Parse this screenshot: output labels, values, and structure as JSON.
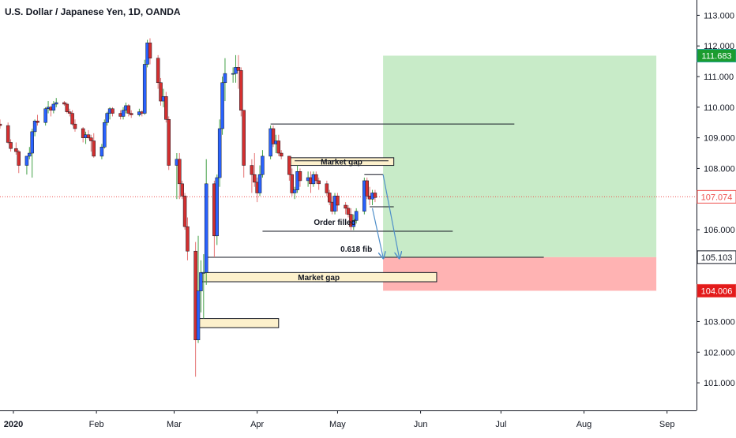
{
  "chart_data": {
    "type": "candlestick",
    "title": "U.S. Dollar / Japanese Yen, 1D, OANDA",
    "ylim": [
      100.1,
      113.5
    ],
    "y_ticks": [
      {
        "value": 113,
        "label": "113.000"
      },
      {
        "value": 112,
        "label": "112.000"
      },
      {
        "value": 111,
        "label": "111.000"
      },
      {
        "value": 110,
        "label": "110.000"
      },
      {
        "value": 109,
        "label": "109.000"
      },
      {
        "value": 108,
        "label": "108.000"
      },
      {
        "value": 107,
        "label": "107.000"
      },
      {
        "value": 106,
        "label": "106.000"
      },
      {
        "value": 105,
        "label": "105.000"
      },
      {
        "value": 104,
        "label": "104.000"
      },
      {
        "value": 103,
        "label": "103.000"
      },
      {
        "value": 102,
        "label": "102.000"
      },
      {
        "value": 101,
        "label": "101.000"
      }
    ],
    "x_range": [
      "2019-12-27",
      "2020-09-12"
    ],
    "x_ticks": [
      {
        "date": "2020-01-01",
        "label": "2020",
        "bold": true
      },
      {
        "date": "2020-02-01",
        "label": "Feb"
      },
      {
        "date": "2020-03-01",
        "label": "Mar"
      },
      {
        "date": "2020-04-01",
        "label": "Apr"
      },
      {
        "date": "2020-05-01",
        "label": "May"
      },
      {
        "date": "2020-06-01",
        "label": "Jun"
      },
      {
        "date": "2020-07-01",
        "label": "Jul"
      },
      {
        "date": "2020-08-01",
        "label": "Aug"
      },
      {
        "date": "2020-09-01",
        "label": "Sep"
      }
    ],
    "price_labels": [
      {
        "value": 111.683,
        "label": "111.683",
        "color": "#26a69a",
        "fill": "#1b9c2f"
      },
      {
        "value": 107.074,
        "label": "107.074",
        "color": "#ef5350",
        "fill": "#ffffff",
        "text_color": "#ef5350"
      },
      {
        "value": 105.103,
        "label": "105.103",
        "color": "#131722",
        "fill": "#ffffff",
        "text_color": "#131722"
      },
      {
        "value": 104.006,
        "label": "104.006",
        "color": "#ef5350",
        "fill": "#e31b1b"
      }
    ],
    "current_price": 107.074,
    "colors": {
      "up": "#2962ff",
      "down": "#d32f2f",
      "profit_zone": "#c8ebc8",
      "loss_zone": "#ffb3b3",
      "gap_box": "#fdf1cc",
      "current_line": "#ef5350"
    },
    "candles": [
      [
        "2019-12-27",
        109.45,
        109.6,
        109.3,
        109.4
      ],
      [
        "2019-12-30",
        109.4,
        109.5,
        108.8,
        108.85
      ],
      [
        "2019-12-31",
        108.85,
        108.95,
        108.55,
        108.65
      ],
      [
        "2020-01-02",
        108.65,
        108.85,
        108.45,
        108.55
      ],
      [
        "2020-01-03",
        108.55,
        108.6,
        107.85,
        108.1
      ],
      [
        "2020-01-06",
        108.1,
        108.35,
        107.8,
        108.4
      ],
      [
        "2020-01-07",
        108.4,
        108.7,
        108.3,
        108.5
      ],
      [
        "2020-01-08",
        108.5,
        109.3,
        107.7,
        109.2
      ],
      [
        "2020-01-09",
        109.2,
        109.6,
        109.05,
        109.55
      ],
      [
        "2020-01-10",
        109.55,
        109.75,
        109.4,
        109.5
      ],
      [
        "2020-01-13",
        109.5,
        110.0,
        109.4,
        109.95
      ],
      [
        "2020-01-14",
        109.95,
        110.2,
        109.8,
        110.0
      ],
      [
        "2020-01-15",
        110.0,
        110.05,
        109.7,
        109.9
      ],
      [
        "2020-01-16",
        109.9,
        110.2,
        109.8,
        110.1
      ],
      [
        "2020-01-17",
        110.1,
        110.3,
        110.0,
        110.15
      ],
      [
        "2020-01-20",
        110.15,
        110.2,
        110.05,
        110.1
      ],
      [
        "2020-01-21",
        110.1,
        110.15,
        109.8,
        109.85
      ],
      [
        "2020-01-22",
        109.85,
        109.95,
        109.7,
        109.8
      ],
      [
        "2020-01-23",
        109.8,
        109.9,
        109.4,
        109.45
      ],
      [
        "2020-01-24",
        109.45,
        109.6,
        109.2,
        109.3
      ],
      [
        "2020-01-27",
        109.3,
        109.35,
        108.85,
        109.0
      ],
      [
        "2020-01-28",
        109.0,
        109.2,
        108.8,
        109.1
      ],
      [
        "2020-01-29",
        109.1,
        109.25,
        108.95,
        109.0
      ],
      [
        "2020-01-30",
        109.0,
        109.1,
        108.55,
        108.9
      ],
      [
        "2020-01-31",
        108.9,
        109.15,
        108.35,
        108.4
      ],
      [
        "2020-02-03",
        108.4,
        108.8,
        108.3,
        108.7
      ],
      [
        "2020-02-04",
        108.7,
        109.6,
        108.65,
        109.5
      ],
      [
        "2020-02-05",
        109.5,
        109.85,
        109.4,
        109.8
      ],
      [
        "2020-02-06",
        109.8,
        110.0,
        109.6,
        109.95
      ],
      [
        "2020-02-07",
        109.95,
        110.0,
        109.7,
        109.8
      ],
      [
        "2020-02-10",
        109.8,
        109.9,
        109.6,
        109.7
      ],
      [
        "2020-02-11",
        109.7,
        110.0,
        109.6,
        109.9
      ],
      [
        "2020-02-12",
        109.9,
        110.15,
        109.8,
        110.05
      ],
      [
        "2020-02-13",
        110.05,
        110.1,
        109.7,
        109.8
      ],
      [
        "2020-02-14",
        109.8,
        109.9,
        109.65,
        109.75
      ],
      [
        "2020-02-17",
        109.75,
        109.95,
        109.7,
        109.85
      ],
      [
        "2020-02-18",
        109.85,
        109.9,
        109.7,
        109.8
      ],
      [
        "2020-02-19",
        109.8,
        111.55,
        109.75,
        111.4
      ],
      [
        "2020-02-20",
        111.4,
        112.2,
        111.3,
        112.1
      ],
      [
        "2020-02-21",
        112.1,
        112.25,
        111.4,
        111.6
      ],
      [
        "2020-02-24",
        111.6,
        111.7,
        110.6,
        110.8
      ],
      [
        "2020-02-25",
        110.8,
        110.95,
        110.05,
        110.2
      ],
      [
        "2020-02-26",
        110.2,
        110.6,
        110.0,
        110.35
      ],
      [
        "2020-02-27",
        110.35,
        110.5,
        109.5,
        109.6
      ],
      [
        "2020-02-28",
        109.6,
        109.7,
        107.95,
        108.1
      ],
      [
        "2020-03-02",
        108.1,
        108.5,
        107.0,
        108.3
      ],
      [
        "2020-03-03",
        108.3,
        108.5,
        107.0,
        107.5
      ],
      [
        "2020-03-04",
        107.5,
        107.6,
        107.0,
        107.1
      ],
      [
        "2020-03-05",
        107.1,
        107.2,
        106.0,
        106.1
      ],
      [
        "2020-03-06",
        106.1,
        106.4,
        105.0,
        105.3
      ],
      [
        "2020-03-09",
        105.3,
        105.6,
        101.2,
        102.4
      ],
      [
        "2020-03-10",
        102.4,
        105.8,
        102.3,
        104.0
      ],
      [
        "2020-03-11",
        104.0,
        105.0,
        103.3,
        104.6
      ],
      [
        "2020-03-12",
        104.6,
        105.2,
        103.1,
        104.6
      ],
      [
        "2020-03-13",
        104.6,
        108.3,
        104.2,
        107.5
      ],
      [
        "2020-03-16",
        107.5,
        107.6,
        105.1,
        105.8
      ],
      [
        "2020-03-17",
        105.8,
        107.8,
        105.5,
        107.7
      ],
      [
        "2020-03-18",
        107.7,
        109.6,
        107.4,
        109.3
      ],
      [
        "2020-03-19",
        109.3,
        111.0,
        109.1,
        110.8
      ],
      [
        "2020-03-20",
        110.8,
        111.6,
        110.2,
        111.1
      ],
      [
        "2020-03-23",
        111.1,
        111.3,
        110.8,
        111.1
      ],
      [
        "2020-03-24",
        111.1,
        111.7,
        110.8,
        111.3
      ],
      [
        "2020-03-25",
        111.3,
        111.7,
        110.6,
        111.2
      ],
      [
        "2020-03-26",
        111.2,
        111.3,
        109.7,
        109.9
      ],
      [
        "2020-03-27",
        109.9,
        109.9,
        107.7,
        108.1
      ],
      [
        "2020-03-30",
        108.1,
        108.3,
        107.2,
        107.8
      ],
      [
        "2020-03-31",
        107.8,
        108.5,
        107.4,
        107.55
      ],
      [
        "2020-04-01",
        107.55,
        107.7,
        106.9,
        107.2
      ],
      [
        "2020-04-02",
        107.2,
        108.1,
        107.1,
        107.8
      ],
      [
        "2020-04-03",
        107.8,
        108.6,
        107.7,
        108.4
      ],
      [
        "2020-04-06",
        108.4,
        109.4,
        108.3,
        109.3
      ],
      [
        "2020-04-07",
        109.3,
        109.4,
        108.7,
        108.8
      ],
      [
        "2020-04-08",
        108.8,
        109.1,
        108.5,
        108.9
      ],
      [
        "2020-04-09",
        108.9,
        109.1,
        108.4,
        108.5
      ],
      [
        "2020-04-10",
        108.5,
        108.6,
        108.3,
        108.4
      ],
      [
        "2020-04-13",
        108.4,
        108.4,
        107.6,
        107.8
      ],
      [
        "2020-04-14",
        107.8,
        108.0,
        107.1,
        107.2
      ],
      [
        "2020-04-15",
        107.2,
        107.4,
        107.0,
        107.3
      ],
      [
        "2020-04-16",
        107.3,
        108.1,
        107.2,
        107.9
      ],
      [
        "2020-04-17",
        107.9,
        108.0,
        107.4,
        107.6
      ],
      [
        "2020-04-20",
        107.6,
        107.9,
        107.4,
        107.7
      ],
      [
        "2020-04-21",
        107.7,
        107.9,
        107.2,
        107.5
      ],
      [
        "2020-04-22",
        107.5,
        107.9,
        107.4,
        107.8
      ],
      [
        "2020-04-23",
        107.8,
        107.9,
        107.5,
        107.6
      ],
      [
        "2020-04-24",
        107.6,
        107.7,
        107.3,
        107.5
      ],
      [
        "2020-04-27",
        107.5,
        107.6,
        107.1,
        107.2
      ],
      [
        "2020-04-28",
        107.2,
        107.3,
        106.8,
        106.9
      ],
      [
        "2020-04-29",
        106.9,
        107.1,
        106.5,
        106.6
      ],
      [
        "2020-04-30",
        106.6,
        107.2,
        106.5,
        107.1
      ],
      [
        "2020-05-01",
        107.1,
        107.2,
        106.6,
        106.8
      ],
      [
        "2020-05-04",
        106.8,
        106.9,
        106.5,
        106.7
      ],
      [
        "2020-05-05",
        106.7,
        106.8,
        106.4,
        106.5
      ],
      [
        "2020-05-06",
        106.5,
        106.7,
        105.99,
        106.1
      ],
      [
        "2020-05-07",
        106.1,
        106.5,
        105.99,
        106.3
      ],
      [
        "2020-05-08",
        106.3,
        106.7,
        106.2,
        106.6
      ],
      [
        "2020-05-11",
        106.6,
        107.7,
        106.5,
        107.6
      ],
      [
        "2020-05-12",
        107.6,
        107.7,
        107.0,
        107.1
      ],
      [
        "2020-05-13",
        107.1,
        107.4,
        106.8,
        107.0
      ],
      [
        "2020-05-14",
        107.0,
        107.3,
        106.8,
        107.2
      ],
      [
        "2020-05-15",
        107.2,
        107.3,
        106.9,
        107.05
      ]
    ],
    "shapes": {
      "profit_zone": {
        "x0": "2020-05-18",
        "x1": "2020-08-28",
        "y0": 105.103,
        "y1": 111.683
      },
      "loss_zone": {
        "x0": "2020-05-18",
        "x1": "2020-08-28",
        "y0": 104.006,
        "y1": 105.103
      },
      "lines": [
        {
          "x0": "2020-04-06",
          "x1": "2020-07-06",
          "y": 109.45
        },
        {
          "x0": "2020-04-15",
          "x1": "2020-05-20",
          "y": 108.25
        },
        {
          "x0": "2020-05-11",
          "x1": "2020-05-18",
          "y": 107.8
        },
        {
          "x0": "2020-05-13",
          "x1": "2020-05-22",
          "y": 106.75
        },
        {
          "x0": "2020-04-03",
          "x1": "2020-06-13",
          "y": 105.95
        },
        {
          "x0": "2020-03-13",
          "x1": "2020-07-17",
          "y": 105.1
        }
      ],
      "gaps": [
        {
          "x0": "2020-04-13",
          "x1": "2020-05-22",
          "y0": 108.1,
          "y1": 108.35,
          "label": "Market gap"
        },
        {
          "x0": "2020-03-11",
          "x1": "2020-06-07",
          "y0": 104.3,
          "y1": 104.6,
          "label": "Market gap"
        },
        {
          "x0": "2020-03-09",
          "x1": "2020-04-09",
          "y0": 102.8,
          "y1": 103.1
        }
      ],
      "labels": [
        {
          "x": "2020-04-30",
          "y": 106.15,
          "text": "Order filled"
        },
        {
          "x": "2020-05-08",
          "y": 105.28,
          "text": "0.618 fib"
        }
      ],
      "arrows": [
        {
          "x0": "2020-05-14",
          "y0": 106.7,
          "x1": "2020-05-18",
          "y1": 105.1
        },
        {
          "x0": "2020-05-18",
          "y0": 107.8,
          "x1": "2020-05-24",
          "y1": 105.1
        }
      ]
    }
  }
}
